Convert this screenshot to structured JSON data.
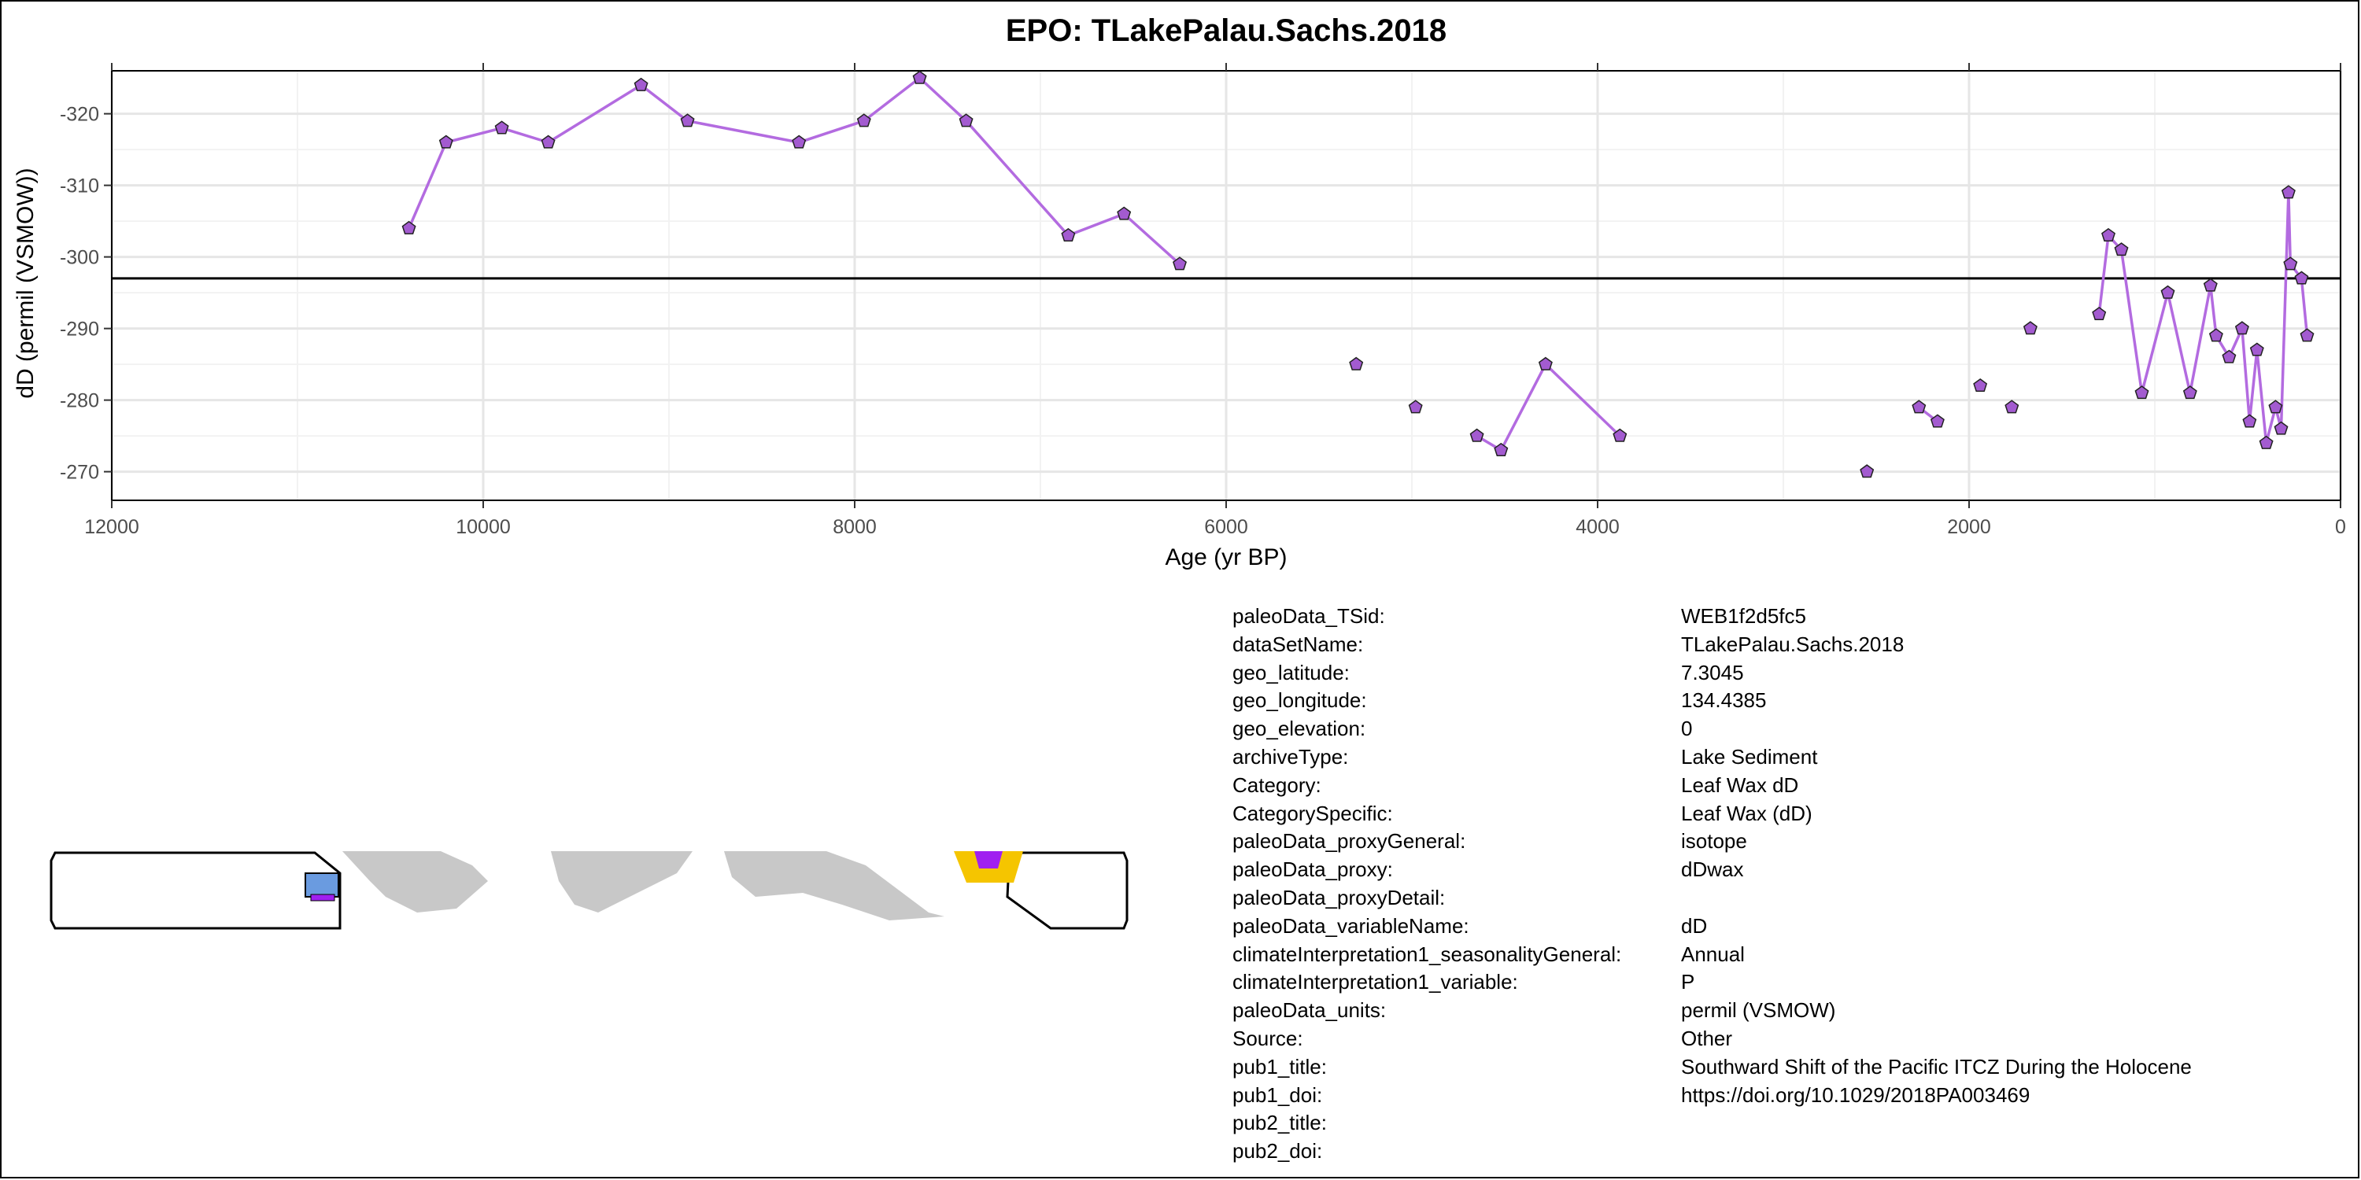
{
  "chart_data": {
    "type": "line",
    "title": "EPO: TLakePalau.Sachs.2018",
    "xlabel": "Age (yr BP)",
    "ylabel": "dD (permil (VSMOW))",
    "x_reversed": true,
    "y_reversed": true,
    "xlim": [
      12000,
      0
    ],
    "ylim": [
      -266,
      -326
    ],
    "x_ticks": [
      12000,
      10000,
      8000,
      6000,
      4000,
      2000,
      0
    ],
    "y_ticks": [
      -320,
      -310,
      -300,
      -290,
      -280,
      -270
    ],
    "hline": -297,
    "grid": true,
    "line_color": "#B36BE0",
    "marker_color": "#A35BD0",
    "series": [
      {
        "segments": [
          [
            [
              10400,
              -304
            ],
            [
              10200,
              -316
            ],
            [
              9900,
              -318
            ],
            [
              9650,
              -316
            ],
            [
              9150,
              -324
            ],
            [
              8900,
              -319
            ],
            [
              8300,
              -316
            ],
            [
              7950,
              -319
            ],
            [
              7650,
              -325
            ],
            [
              7400,
              -319
            ],
            [
              6850,
              -303
            ],
            [
              6550,
              -306
            ],
            [
              6250,
              -299
            ]
          ],
          [
            [
              5300,
              -285
            ]
          ],
          [
            [
              4980,
              -279
            ]
          ],
          [
            [
              4650,
              -275
            ],
            [
              4520,
              -273
            ],
            [
              4280,
              -285
            ],
            [
              3880,
              -275
            ]
          ],
          [
            [
              2550,
              -270
            ]
          ],
          [
            [
              2270,
              -279
            ],
            [
              2170,
              -277
            ]
          ],
          [
            [
              1940,
              -282
            ]
          ],
          [
            [
              1770,
              -279
            ]
          ],
          [
            [
              1670,
              -290
            ]
          ],
          [
            [
              1300,
              -292
            ],
            [
              1250,
              -303
            ],
            [
              1180,
              -301
            ],
            [
              1070,
              -281
            ],
            [
              930,
              -295
            ],
            [
              810,
              -281
            ],
            [
              700,
              -296
            ],
            [
              670,
              -289
            ],
            [
              600,
              -286
            ],
            [
              530,
              -290
            ],
            [
              490,
              -277
            ],
            [
              450,
              -287
            ],
            [
              400,
              -274
            ],
            [
              350,
              -279
            ],
            [
              320,
              -276
            ],
            [
              280,
              -309
            ],
            [
              270,
              -299
            ],
            [
              210,
              -297
            ],
            [
              180,
              -289
            ]
          ]
        ]
      }
    ]
  },
  "metadata": [
    {
      "key": "paleoData_TSid:",
      "value": "WEB1f2d5fc5"
    },
    {
      "key": "dataSetName:",
      "value": "TLakePalau.Sachs.2018"
    },
    {
      "key": "geo_latitude:",
      "value": "7.3045"
    },
    {
      "key": "geo_longitude:",
      "value": "134.4385"
    },
    {
      "key": "geo_elevation:",
      "value": "0"
    },
    {
      "key": "archiveType:",
      "value": "Lake Sediment"
    },
    {
      "key": "Category:",
      "value": "Leaf Wax dD"
    },
    {
      "key": "CategorySpecific:",
      "value": "Leaf Wax (dD)"
    },
    {
      "key": "paleoData_proxyGeneral:",
      "value": "isotope"
    },
    {
      "key": "paleoData_proxy:",
      "value": "dDwax"
    },
    {
      "key": "paleoData_proxyDetail:",
      "value": ""
    },
    {
      "key": "paleoData_variableName:",
      "value": "dD"
    },
    {
      "key": "climateInterpretation1_seasonalityGeneral:",
      "value": "Annual"
    },
    {
      "key": "climateInterpretation1_variable:",
      "value": "P"
    },
    {
      "key": "paleoData_units:",
      "value": "permil (VSMOW)"
    },
    {
      "key": "Source:",
      "value": "Other"
    },
    {
      "key": "pub1_title:",
      "value": "Southward Shift of the Pacific ITCZ During the Holocene"
    },
    {
      "key": "pub1_doi:",
      "value": "https://doi.org/10.1029/2018PA003469"
    },
    {
      "key": "pub2_title:",
      "value": ""
    },
    {
      "key": "pub2_doi:",
      "value": ""
    }
  ],
  "map": {
    "land_color": "#C8C8C8",
    "site_color": "#F5C500",
    "inset_fill": "#6A9BE0",
    "marker_color": "#A020F0"
  }
}
